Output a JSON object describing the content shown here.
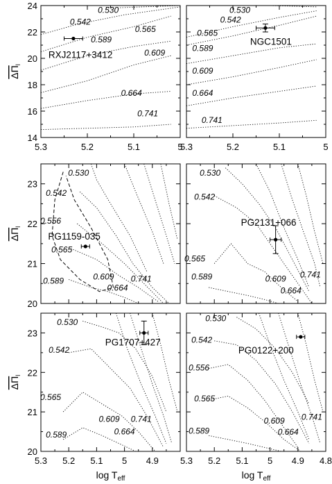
{
  "chart_data": [
    {
      "type": "line",
      "panel": "top-left",
      "xlim": [
        5.3,
        5.0
      ],
      "ylim": [
        14,
        24
      ],
      "xticks": [
        "5.3",
        "5.2",
        "5.1",
        "5"
      ],
      "yticks": [
        "14",
        "16",
        "18",
        "20",
        "22",
        "24"
      ],
      "ylabel": "ΔΠl",
      "xlabel": "",
      "star": {
        "name": "RXJ2117+3412",
        "teff": 5.23,
        "dpi": 21.5,
        "xerr": 0.02,
        "yerr": 0.0
      },
      "series": [
        {
          "name": "0.530",
          "x": [
            5.16,
            5.0
          ],
          "y": [
            23.8,
            24.0
          ]
        },
        {
          "name": "0.542",
          "x": [
            5.3,
            5.22,
            5.12,
            5.0
          ],
          "y": [
            21.8,
            22.6,
            23.3,
            23.9
          ]
        },
        {
          "name": "0.565",
          "x": [
            5.3,
            5.2,
            5.1,
            5.02
          ],
          "y": [
            20.5,
            21.6,
            22.4,
            23.2
          ]
        },
        {
          "name": "0.589",
          "x": [
            5.3,
            5.2,
            5.1,
            5.02
          ],
          "y": [
            19.1,
            20.2,
            20.9,
            21.3
          ]
        },
        {
          "name": "0.609",
          "x": [
            5.3,
            5.2,
            5.1,
            5.02
          ],
          "y": [
            17.4,
            18.3,
            19.5,
            20.2
          ]
        },
        {
          "name": "0.664",
          "x": [
            5.3,
            5.2,
            5.1,
            5.02
          ],
          "y": [
            16.2,
            16.8,
            17.3,
            17.5
          ]
        },
        {
          "name": "0.741",
          "x": [
            5.3,
            5.2,
            5.1,
            5.02
          ],
          "y": [
            14.6,
            14.7,
            14.8,
            15.0
          ]
        }
      ],
      "labels": [
        {
          "text": "0.530",
          "x": 5.155,
          "y": 23.45
        },
        {
          "text": "0.542",
          "x": 5.215,
          "y": 22.55
        },
        {
          "text": "0.565",
          "x": 5.075,
          "y": 22.0
        },
        {
          "text": "0.589",
          "x": 5.17,
          "y": 21.2
        },
        {
          "text": "0.609",
          "x": 5.055,
          "y": 20.2
        },
        {
          "text": "0.664",
          "x": 5.105,
          "y": 17.15
        },
        {
          "text": "0.741",
          "x": 5.07,
          "y": 15.6
        }
      ]
    },
    {
      "type": "line",
      "panel": "top-right",
      "xlim": [
        5.3,
        5.0
      ],
      "ylim": [
        14,
        24
      ],
      "xticks": [
        "5.3",
        "5.2",
        "5.1",
        "5"
      ],
      "yticks": [],
      "ylabel": "",
      "xlabel": "",
      "star": {
        "name": "NGC1501",
        "teff": 5.13,
        "dpi": 22.3,
        "xerr": 0.02,
        "yerr": 0.3
      },
      "series": [
        {
          "name": "0.530",
          "x": [
            5.2,
            5.12,
            5.02
          ],
          "y": [
            24.0,
            24.0,
            23.9
          ]
        },
        {
          "name": "0.542",
          "x": [
            5.3,
            5.2,
            5.1,
            5.02
          ],
          "y": [
            21.6,
            22.4,
            23.1,
            23.6
          ]
        },
        {
          "name": "0.565",
          "x": [
            5.3,
            5.2,
            5.1,
            5.02
          ],
          "y": [
            21.0,
            21.7,
            22.5,
            23.2
          ]
        },
        {
          "name": "0.589",
          "x": [
            5.3,
            5.2,
            5.1,
            5.02
          ],
          "y": [
            19.6,
            20.2,
            20.8,
            21.1
          ]
        },
        {
          "name": "0.609",
          "x": [
            5.3,
            5.2,
            5.1,
            5.02
          ],
          "y": [
            18.0,
            18.6,
            19.3,
            19.9
          ]
        },
        {
          "name": "0.664",
          "x": [
            5.3,
            5.2,
            5.1,
            5.02
          ],
          "y": [
            16.4,
            17.0,
            17.5,
            17.9
          ]
        },
        {
          "name": "0.741",
          "x": [
            5.3,
            5.2,
            5.1,
            5.02
          ],
          "y": [
            14.7,
            14.9,
            15.1,
            15.3
          ]
        }
      ],
      "labels": [
        {
          "text": "0.530",
          "x": 5.185,
          "y": 23.45
        },
        {
          "text": "0.542",
          "x": 5.205,
          "y": 22.7
        },
        {
          "text": "0.565",
          "x": 5.255,
          "y": 21.7
        },
        {
          "text": "0.589",
          "x": 5.265,
          "y": 20.55
        },
        {
          "text": "0.609",
          "x": 5.265,
          "y": 18.85
        },
        {
          "text": "0.664",
          "x": 5.265,
          "y": 17.15
        },
        {
          "text": "0.741",
          "x": 5.245,
          "y": 15.1
        }
      ]
    },
    {
      "type": "line",
      "panel": "middle-left",
      "xlim": [
        5.3,
        4.8
      ],
      "ylim": [
        20,
        23.5
      ],
      "xticks": [],
      "yticks": [
        "20",
        "21",
        "22",
        "23"
      ],
      "ylabel": "ΔΠl",
      "xlabel": "",
      "star": {
        "name": "PG1159-035",
        "teff": 5.14,
        "dpi": 21.43,
        "xerr": 0.015,
        "yerr": 0.0
      },
      "series": [
        {
          "name": "0.530",
          "x": [
            5.12,
            5.1,
            5.05,
            4.98,
            4.92
          ],
          "y": [
            23.5,
            23.1,
            22.5,
            21.7,
            20.8
          ]
        },
        {
          "name": "0.542",
          "x": [
            5.16,
            5.1,
            5.03,
            4.97,
            4.9,
            4.84
          ],
          "y": [
            22.8,
            22.4,
            21.7,
            21.0,
            20.4,
            20.0
          ]
        },
        {
          "name": "0.556",
          "x": [
            5.17,
            5.08,
            5.0,
            4.93,
            4.86
          ],
          "y": [
            22.0,
            21.5,
            21.0,
            20.5,
            20.0
          ]
        },
        {
          "name": "0.565",
          "x": [
            5.2,
            5.1,
            5.02,
            4.95,
            4.88
          ],
          "y": [
            21.4,
            21.1,
            20.7,
            20.4,
            20.05
          ]
        },
        {
          "name": "0.589",
          "x": [
            5.2,
            5.12,
            5.06,
            5.0,
            4.95
          ],
          "y": [
            20.6,
            20.4,
            20.3,
            20.15,
            20.0
          ]
        },
        {
          "name": "0.609",
          "x": [
            5.0,
            4.96,
            4.9,
            4.86
          ],
          "y": [
            23.5,
            22.8,
            21.8,
            21.0
          ]
        },
        {
          "name": "0.664",
          "x": [
            4.93,
            4.89,
            4.85,
            4.82
          ],
          "y": [
            23.5,
            22.6,
            21.7,
            21.0
          ]
        },
        {
          "name": "0.741",
          "x": [
            4.87,
            4.84,
            4.81
          ],
          "y": [
            23.5,
            22.5,
            21.6
          ]
        }
      ],
      "dashed": {
        "x": [
          5.22,
          5.25,
          5.26,
          5.23,
          5.16,
          5.09,
          5.04,
          5.06,
          5.12,
          5.18,
          5.21
        ],
        "y": [
          23.3,
          22.6,
          21.7,
          21.1,
          20.6,
          20.3,
          20.4,
          21.1,
          21.9,
          22.6,
          23.2
        ]
      },
      "labels": [
        {
          "text": "0.530",
          "x": 5.165,
          "y": 23.2
        },
        {
          "text": "0.542",
          "x": 5.245,
          "y": 22.7
        },
        {
          "text": "0.556",
          "x": 5.265,
          "y": 22.0
        },
        {
          "text": "0.565",
          "x": 5.225,
          "y": 21.28
        },
        {
          "text": "0.589",
          "x": 5.255,
          "y": 20.5
        },
        {
          "text": "0.609",
          "x": 5.075,
          "y": 20.6
        },
        {
          "text": "0.664",
          "x": 5.025,
          "y": 20.32
        },
        {
          "text": "0.741",
          "x": 4.94,
          "y": 20.55
        }
      ]
    },
    {
      "type": "line",
      "panel": "middle-right",
      "xlim": [
        5.3,
        4.8
      ],
      "ylim": [
        20,
        23.5
      ],
      "xticks": [],
      "yticks": [],
      "ylabel": "",
      "xlabel": "",
      "star": {
        "name": "PG2131+066",
        "teff": 4.98,
        "dpi": 21.6,
        "xerr": 0.02,
        "yerr": 0.35
      },
      "series": [
        {
          "name": "0.530",
          "x": [
            5.16,
            5.1,
            5.04,
            4.98,
            4.92,
            4.86
          ],
          "y": [
            23.4,
            23.0,
            22.5,
            21.9,
            21.1,
            20.3
          ]
        },
        {
          "name": "0.542",
          "x": [
            5.2,
            5.12,
            5.05,
            4.98,
            4.91,
            4.85
          ],
          "y": [
            22.7,
            22.4,
            22.0,
            21.3,
            20.6,
            20.0
          ]
        },
        {
          "name": "0.565",
          "x": [
            5.2,
            5.14,
            5.08,
            5.02,
            4.96,
            4.9
          ],
          "y": [
            21.0,
            21.5,
            21.0,
            20.8,
            20.4,
            20.05
          ]
        },
        {
          "name": "0.589",
          "x": [
            5.22,
            5.15,
            5.08,
            5.02,
            4.97
          ],
          "y": [
            20.4,
            20.3,
            20.2,
            20.1,
            20.0
          ]
        },
        {
          "name": "0.609",
          "x": [
            5.05,
            5.0,
            4.95,
            4.9,
            4.86
          ],
          "y": [
            23.5,
            22.8,
            21.9,
            21.1,
            20.4
          ]
        },
        {
          "name": "0.664",
          "x": [
            4.96,
            4.92,
            4.88,
            4.84,
            4.82
          ],
          "y": [
            23.5,
            22.6,
            21.8,
            21.0,
            20.4
          ]
        },
        {
          "name": "0.741",
          "x": [
            4.9,
            4.87,
            4.84,
            4.81
          ],
          "y": [
            23.5,
            22.7,
            21.8,
            21.0
          ]
        }
      ],
      "labels": [
        {
          "text": "0.530",
          "x": 5.215,
          "y": 23.2
        },
        {
          "text": "0.542",
          "x": 5.235,
          "y": 22.6
        },
        {
          "text": "0.565",
          "x": 5.27,
          "y": 21.05
        },
        {
          "text": "0.589",
          "x": 5.245,
          "y": 20.6
        },
        {
          "text": "0.609",
          "x": 4.98,
          "y": 20.55
        },
        {
          "text": "0.664",
          "x": 4.925,
          "y": 20.25
        },
        {
          "text": "0.741",
          "x": 4.855,
          "y": 20.65
        }
      ]
    },
    {
      "type": "line",
      "panel": "bottom-left",
      "xlim": [
        5.3,
        4.8
      ],
      "ylim": [
        20,
        23.5
      ],
      "xticks": [
        "5.3",
        "5.2",
        "5.1",
        "5",
        "4.9"
      ],
      "yticks": [
        "20",
        "21",
        "22",
        "23"
      ],
      "ylabel": "ΔΠl",
      "xlabel": "log Teff",
      "star": {
        "name": "PG1707+427",
        "teff": 4.93,
        "dpi": 23.0,
        "xerr": 0.015,
        "yerr": 0.3
      },
      "series": [
        {
          "name": "0.530",
          "x": [
            5.15,
            5.08,
            5.02,
            4.96,
            4.9,
            4.85
          ],
          "y": [
            23.3,
            23.15,
            23.0,
            22.6,
            21.9,
            21.0
          ]
        },
        {
          "name": "0.542",
          "x": [
            5.2,
            5.12,
            5.05,
            4.98,
            4.92,
            4.86
          ],
          "y": [
            22.5,
            22.6,
            22.1,
            21.6,
            20.9,
            20.1
          ]
        },
        {
          "name": "0.565",
          "x": [
            5.22,
            5.15,
            5.08,
            5.01,
            4.95,
            4.89
          ],
          "y": [
            21.0,
            21.5,
            21.2,
            20.9,
            20.5,
            20.0
          ]
        },
        {
          "name": "0.589",
          "x": [
            5.22,
            5.15,
            5.08,
            5.02,
            4.96
          ],
          "y": [
            20.3,
            20.6,
            20.4,
            20.2,
            20.0
          ]
        },
        {
          "name": "0.609",
          "x": [
            5.03,
            4.99,
            4.94,
            4.89,
            4.85
          ],
          "y": [
            23.5,
            22.6,
            21.7,
            20.9,
            20.2
          ]
        },
        {
          "name": "0.664",
          "x": [
            4.98,
            4.94,
            4.9,
            4.86,
            4.83
          ],
          "y": [
            23.5,
            22.6,
            21.7,
            20.9,
            20.2
          ]
        },
        {
          "name": "0.741",
          "x": [
            4.9,
            4.87,
            4.84,
            4.81
          ],
          "y": [
            23.5,
            22.7,
            21.8,
            21.0
          ]
        }
      ],
      "labels": [
        {
          "text": "0.530",
          "x": 5.205,
          "y": 23.2
        },
        {
          "text": "0.542",
          "x": 5.235,
          "y": 22.5
        },
        {
          "text": "0.565",
          "x": 5.265,
          "y": 21.3
        },
        {
          "text": "0.589",
          "x": 5.245,
          "y": 20.35
        },
        {
          "text": "0.609",
          "x": 5.055,
          "y": 20.75
        },
        {
          "text": "0.664",
          "x": 5.0,
          "y": 20.43
        },
        {
          "text": "0.741",
          "x": 4.94,
          "y": 20.75
        }
      ]
    },
    {
      "type": "line",
      "panel": "bottom-right",
      "xlim": [
        5.3,
        4.8
      ],
      "ylim": [
        20,
        23.5
      ],
      "xticks": [
        "5.3",
        "5.2",
        "5.1",
        "5",
        "4.9",
        "4.8"
      ],
      "yticks": [],
      "ylabel": "",
      "xlabel": "log Teff",
      "star": {
        "name": "PG0122+200",
        "teff": 4.89,
        "dpi": 22.9,
        "xerr": 0.015,
        "yerr": 0.0
      },
      "series": [
        {
          "name": "0.530",
          "x": [
            5.12,
            5.05,
            4.98,
            4.92,
            4.86
          ],
          "y": [
            23.4,
            23.1,
            22.6,
            22.0,
            21.2
          ]
        },
        {
          "name": "0.542",
          "x": [
            5.2,
            5.12,
            5.05,
            4.98,
            4.92,
            4.86
          ],
          "y": [
            22.8,
            22.7,
            22.3,
            21.7,
            21.0,
            20.2
          ]
        },
        {
          "name": "0.556",
          "x": [
            5.22,
            5.15,
            5.08,
            5.02,
            4.96,
            4.9
          ],
          "y": [
            22.1,
            22.2,
            21.8,
            21.3,
            20.7,
            20.1
          ]
        },
        {
          "name": "0.565",
          "x": [
            5.22,
            5.15,
            5.08,
            5.01,
            4.95,
            4.89
          ],
          "y": [
            21.3,
            21.4,
            21.1,
            20.7,
            20.3,
            20.0
          ]
        },
        {
          "name": "0.589",
          "x": [
            5.22,
            5.15,
            5.08,
            5.02,
            4.96
          ],
          "y": [
            20.4,
            20.3,
            20.2,
            20.1,
            20.0
          ]
        },
        {
          "name": "0.609",
          "x": [
            5.04,
            5.0,
            4.95,
            4.9,
            4.86
          ],
          "y": [
            23.5,
            22.7,
            21.8,
            21.0,
            20.3
          ]
        },
        {
          "name": "0.664",
          "x": [
            4.97,
            4.93,
            4.89,
            4.85,
            4.82
          ],
          "y": [
            23.5,
            22.6,
            21.7,
            20.9,
            20.2
          ]
        },
        {
          "name": "0.741",
          "x": [
            4.9,
            4.87,
            4.84,
            4.81
          ],
          "y": [
            23.5,
            22.7,
            21.8,
            21.0
          ]
        }
      ],
      "labels": [
        {
          "text": "0.530",
          "x": 5.195,
          "y": 23.3
        },
        {
          "text": "0.542",
          "x": 5.245,
          "y": 22.75
        },
        {
          "text": "0.556",
          "x": 5.255,
          "y": 22.05
        },
        {
          "text": "0.565",
          "x": 5.235,
          "y": 21.27
        },
        {
          "text": "0.589",
          "x": 5.255,
          "y": 20.45
        },
        {
          "text": "0.609",
          "x": 4.985,
          "y": 20.7
        },
        {
          "text": "0.664",
          "x": 4.935,
          "y": 20.42
        },
        {
          "text": "0.741",
          "x": 4.85,
          "y": 20.8
        }
      ]
    }
  ]
}
